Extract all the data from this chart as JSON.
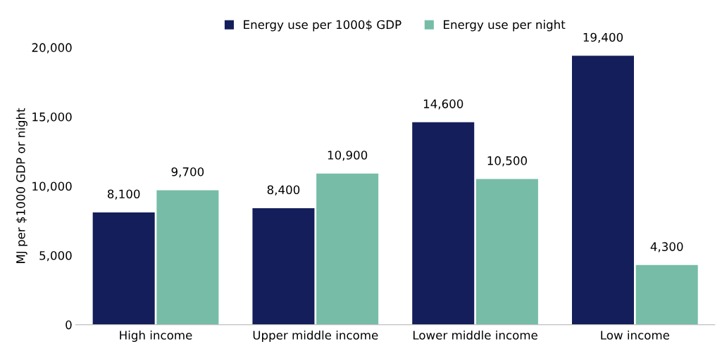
{
  "chart_data": {
    "type": "bar",
    "ylabel": "MJ per $1000 GDP or night",
    "categories": [
      "High income",
      "Upper middle income",
      "Lower middle income",
      "Low income"
    ],
    "series": [
      {
        "name": "Energy use per 1000$ GDP",
        "color": "#141e5a",
        "values": [
          8100,
          8400,
          14600,
          19400
        ],
        "value_labels": [
          "8,100",
          "8,400",
          "14,600",
          "19,400"
        ]
      },
      {
        "name": "Energy use per night",
        "color": "#76bca7",
        "values": [
          9700,
          10900,
          10500,
          4300
        ],
        "value_labels": [
          "9,700",
          "10,900",
          "10,500",
          "4,300"
        ]
      }
    ],
    "ylim": [
      0,
      20000
    ],
    "yticks": [
      0,
      {
        "value": 5000,
        "label": "5,000"
      },
      {
        "value": 10000,
        "label": "10,000"
      },
      {
        "value": 15000,
        "label": "15,000"
      },
      {
        "value": 20000,
        "label": "20,000"
      }
    ],
    "grid": false,
    "legend": "top"
  }
}
